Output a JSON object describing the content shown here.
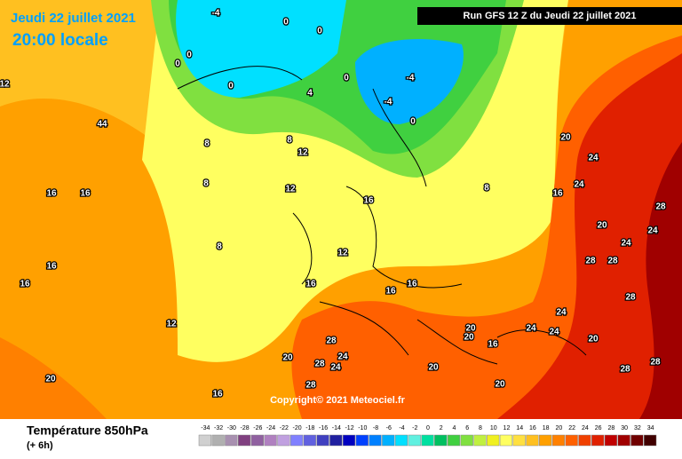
{
  "header": {
    "date": "Jeudi 22 juillet 2021",
    "time": "20:00 locale",
    "run": "Run GFS 12 Z du Jeudi 22 juillet 2021"
  },
  "copyright": "Copyright© 2021 Meteociel.fr",
  "legend": {
    "title": "Température 850hPa",
    "subtitle": "(+ 6h)",
    "scale": [
      -34,
      -32,
      -30,
      -28,
      -26,
      -24,
      -22,
      -20,
      -18,
      -16,
      -14,
      -12,
      -10,
      -8,
      -6,
      -4,
      -2,
      0,
      2,
      4,
      6,
      8,
      10,
      12,
      14,
      16,
      18,
      20,
      22,
      24,
      26,
      28,
      30,
      32,
      34
    ],
    "colors": [
      "#d0d0d0",
      "#b0b0b0",
      "#a890b0",
      "#804080",
      "#9060a0",
      "#b080c0",
      "#c0a0e0",
      "#8080ff",
      "#6060e0",
      "#4040c0",
      "#2020a0",
      "#0000c0",
      "#0040ff",
      "#0080ff",
      "#00b0ff",
      "#00e0ff",
      "#60f0e0",
      "#00e0a0",
      "#00c060",
      "#40d040",
      "#80e040",
      "#c0f040",
      "#f0f020",
      "#ffff60",
      "#ffe040",
      "#ffc020",
      "#ffa000",
      "#ff8000",
      "#ff6000",
      "#f04000",
      "#e02000",
      "#c00000",
      "#a00000",
      "#700000",
      "#400000"
    ]
  },
  "contour_labels": [
    "-4",
    "0",
    "0",
    "0",
    "0",
    "0",
    "4",
    "0",
    "-4",
    "-4",
    "0",
    "8",
    "8",
    "12",
    "8",
    "12",
    "16",
    "8",
    "20",
    "24",
    "16",
    "24",
    "28",
    "24",
    "24",
    "20",
    "28",
    "28",
    "8",
    "12",
    "16",
    "16",
    "16",
    "12",
    "28",
    "24",
    "24",
    "20",
    "28",
    "28",
    "20",
    "20",
    "20",
    "16",
    "24",
    "24",
    "24",
    "20",
    "28",
    "28",
    "28",
    "20",
    "16",
    "20",
    "16",
    "16",
    "16",
    "16",
    "12",
    "44"
  ]
}
